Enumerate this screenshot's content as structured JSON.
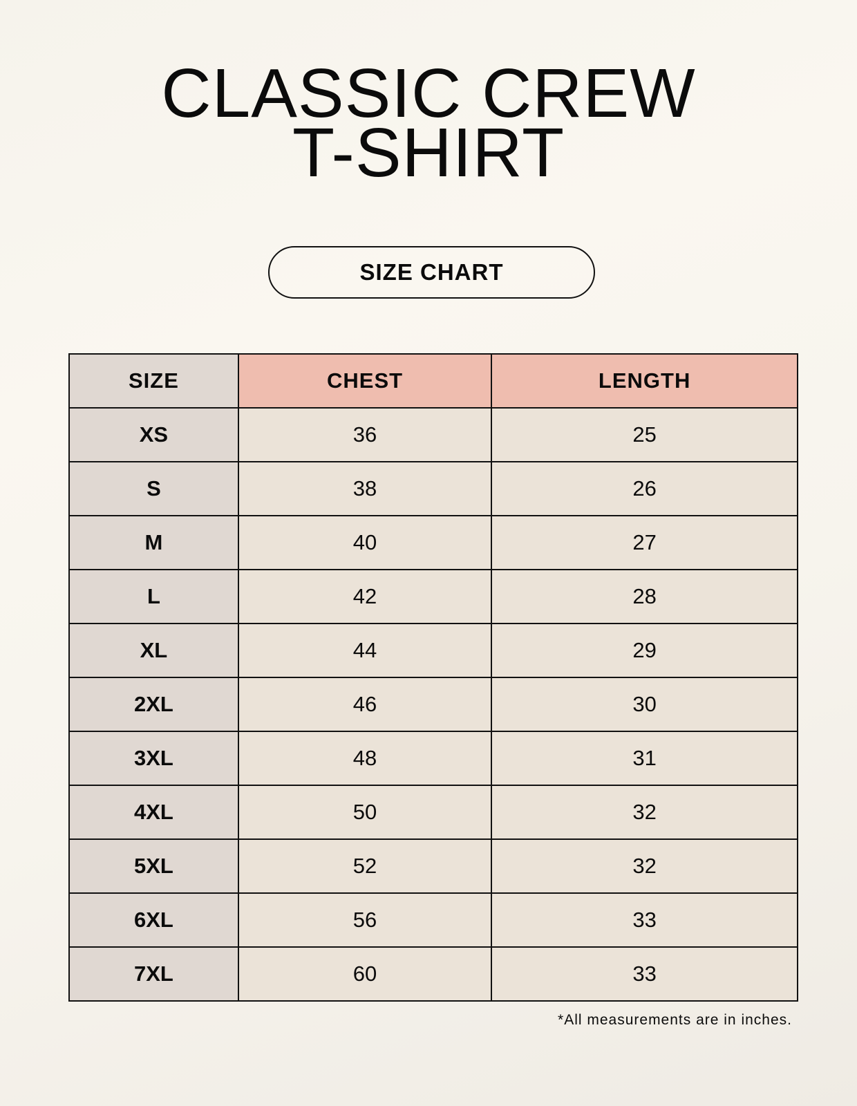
{
  "title": {
    "line1": "CLASSIC CREW",
    "line2": "T-SHIRT"
  },
  "badge": "SIZE CHART",
  "table": {
    "headers": [
      "SIZE",
      "CHEST",
      "LENGTH"
    ],
    "rows": [
      [
        "XS",
        "36",
        "25"
      ],
      [
        "S",
        "38",
        "26"
      ],
      [
        "M",
        "40",
        "27"
      ],
      [
        "L",
        "42",
        "28"
      ],
      [
        "XL",
        "44",
        "29"
      ],
      [
        "2XL",
        "46",
        "30"
      ],
      [
        "3XL",
        "48",
        "31"
      ],
      [
        "4XL",
        "50",
        "32"
      ],
      [
        "5XL",
        "52",
        "32"
      ],
      [
        "6XL",
        "56",
        "33"
      ],
      [
        "7XL",
        "60",
        "33"
      ]
    ]
  },
  "footnote": "*All measurements are in inches.",
  "colors": {
    "size_column": "#e0d8d2",
    "header_accent": "#efbdaf",
    "value_cells": "#ebe3d8"
  }
}
